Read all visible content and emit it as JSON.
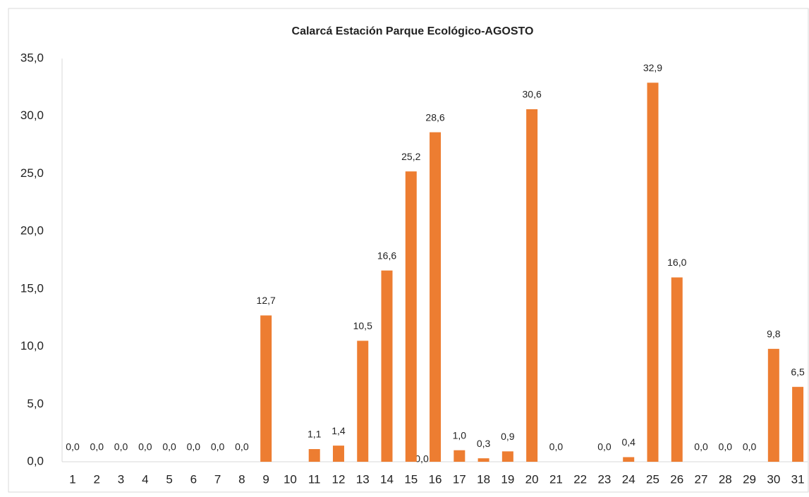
{
  "chart_data": {
    "type": "bar",
    "title": "Calarcá Estación Parque Ecológico-AGOSTO",
    "categories": [
      "1",
      "2",
      "3",
      "4",
      "5",
      "6",
      "7",
      "8",
      "9",
      "10",
      "11",
      "12",
      "13",
      "14",
      "15",
      "16",
      "17",
      "18",
      "19",
      "20",
      "21",
      "22",
      "23",
      "24",
      "25",
      "26",
      "27",
      "28",
      "29",
      "30",
      "31"
    ],
    "values": [
      0,
      0,
      0,
      0,
      0,
      0,
      0,
      0,
      12.7,
      null,
      1.1,
      1.4,
      10.5,
      16.6,
      25.2,
      28.6,
      1.0,
      0.3,
      0.9,
      30.6,
      0,
      null,
      0,
      0.4,
      32.9,
      16.0,
      0,
      0,
      0,
      9.8,
      6.5
    ],
    "value_labels": [
      "0,0",
      "0,0",
      "0,0",
      "0,0",
      "0,0",
      "0,0",
      "0,0",
      "0,0",
      "12,7",
      null,
      "1,1",
      "1,4",
      "10,5",
      "16,6",
      "25,2",
      "28,6",
      "1,0",
      "0,3",
      "0,9",
      "30,6",
      "0,0",
      null,
      "0,0",
      "0,4",
      "32,9",
      "16,0",
      "0,0",
      "0,0",
      "0,0",
      "9,8",
      "6,5"
    ],
    "annotations": [
      "0,0"
    ],
    "color": "#ed7d31",
    "ylim": [
      0,
      35
    ],
    "yticks": [
      {
        "value": 0,
        "label": "0,0"
      },
      {
        "value": 5,
        "label": "5,0"
      },
      {
        "value": 10,
        "label": "10,0"
      },
      {
        "value": 15,
        "label": "15,0"
      },
      {
        "value": 20,
        "label": "20,0"
      },
      {
        "value": 25,
        "label": "25,0"
      },
      {
        "value": 30,
        "label": "30,0"
      },
      {
        "value": 35,
        "label": "35,0"
      }
    ],
    "grid": false
  }
}
